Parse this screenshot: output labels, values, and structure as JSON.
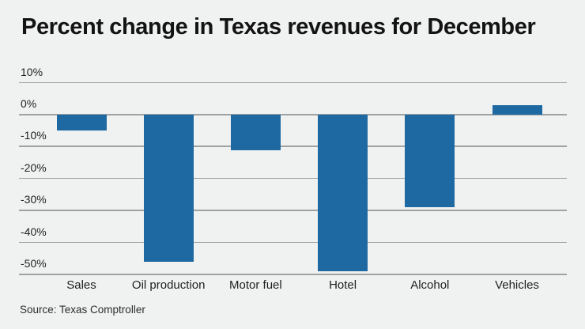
{
  "page": {
    "background_color": "#f0f1f1"
  },
  "header": {
    "title": "Percent change in Texas revenues for December",
    "title_color": "#131313"
  },
  "footer": {
    "source": "Source: Texas Comptroller",
    "source_color": "#2d2d2d"
  },
  "chart_data": {
    "type": "bar",
    "title": "Percent change in Texas revenues for December",
    "categories": [
      "Sales",
      "Oil production",
      "Motor fuel",
      "Hotel",
      "Alcohol",
      "Vehicles"
    ],
    "values": [
      -5,
      -46,
      -11,
      -49,
      -29,
      3
    ],
    "unit": "percent",
    "xlabel": "",
    "ylabel": "",
    "y_ticks": [
      "10%",
      "0%",
      "-10%",
      "-20%",
      "-30%",
      "-40%",
      "-50%"
    ],
    "y_tick_values": [
      10,
      0,
      -10,
      -20,
      -30,
      -40,
      -50
    ],
    "ylim": [
      -50,
      10
    ],
    "grid": true,
    "legend": false,
    "bar_color": "#1f69a3",
    "gridline_color": "#9fa2a2",
    "tick_label_color": "#1f1f1f",
    "source": "Source: Texas Comptroller"
  }
}
